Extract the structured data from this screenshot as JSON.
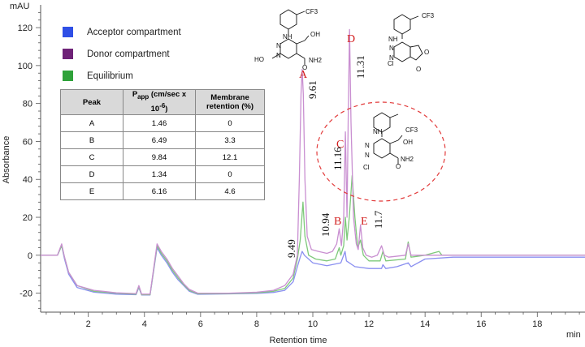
{
  "chart_data": {
    "type": "line",
    "title": "",
    "xlabel": "Retention time",
    "xunit": "min",
    "ylabel": "Absorbance",
    "yunit": "mAU",
    "xlim": [
      0.3,
      19.7
    ],
    "ylim": [
      -30,
      132
    ],
    "xticks": [
      2,
      4,
      6,
      8,
      10,
      12,
      14,
      16,
      18
    ],
    "yticks": [
      -20,
      0,
      20,
      40,
      60,
      80,
      100,
      120
    ],
    "legend": {
      "placement": "top-left"
    },
    "series": [
      {
        "name": "Acceptor compartment",
        "color": "#2f4fe6",
        "line_color": "#8a8ff0",
        "points": [
          [
            0.3,
            0
          ],
          [
            0.9,
            0
          ],
          [
            1.05,
            5
          ],
          [
            1.15,
            -2
          ],
          [
            1.3,
            -10
          ],
          [
            1.6,
            -17
          ],
          [
            2.2,
            -19.5
          ],
          [
            3.0,
            -20.5
          ],
          [
            3.7,
            -20.8
          ],
          [
            3.8,
            -17
          ],
          [
            3.9,
            -21
          ],
          [
            4.2,
            -21
          ],
          [
            4.45,
            4
          ],
          [
            4.6,
            0
          ],
          [
            4.8,
            -4
          ],
          [
            5.0,
            -9
          ],
          [
            5.2,
            -13
          ],
          [
            5.4,
            -16
          ],
          [
            5.6,
            -19
          ],
          [
            5.9,
            -20.6
          ],
          [
            7.0,
            -20.4
          ],
          [
            8.0,
            -20.1
          ],
          [
            8.6,
            -19.6
          ],
          [
            9.0,
            -18.5
          ],
          [
            9.3,
            -14
          ],
          [
            9.45,
            -6
          ],
          [
            9.55,
            -1
          ],
          [
            9.62,
            2
          ],
          [
            9.7,
            0
          ],
          [
            10.0,
            -4
          ],
          [
            10.5,
            -5.5
          ],
          [
            11.0,
            -4
          ],
          [
            11.15,
            2
          ],
          [
            11.2,
            -3
          ],
          [
            11.5,
            -6
          ],
          [
            12.0,
            -7
          ],
          [
            12.45,
            -7
          ],
          [
            12.5,
            -5
          ],
          [
            12.6,
            -7
          ],
          [
            13.0,
            -6
          ],
          [
            13.4,
            -4
          ],
          [
            13.5,
            -6
          ],
          [
            14.0,
            -2
          ],
          [
            15.0,
            -1
          ],
          [
            16.0,
            -1
          ],
          [
            17.0,
            -1
          ],
          [
            18.0,
            -1
          ],
          [
            19.7,
            -1
          ]
        ]
      },
      {
        "name": "Donor compartment",
        "color": "#6e2277",
        "line_color": "#c98fd1",
        "points": [
          [
            0.3,
            0
          ],
          [
            0.9,
            0
          ],
          [
            1.05,
            6
          ],
          [
            1.15,
            -1
          ],
          [
            1.3,
            -9
          ],
          [
            1.6,
            -16
          ],
          [
            2.2,
            -18.5
          ],
          [
            3.0,
            -19.8
          ],
          [
            3.7,
            -20.2
          ],
          [
            3.8,
            -16
          ],
          [
            3.9,
            -20.5
          ],
          [
            4.2,
            -20.5
          ],
          [
            4.45,
            6
          ],
          [
            4.6,
            2
          ],
          [
            4.8,
            -2
          ],
          [
            5.0,
            -7
          ],
          [
            5.2,
            -11
          ],
          [
            5.4,
            -15
          ],
          [
            5.6,
            -18
          ],
          [
            5.9,
            -20
          ],
          [
            7.0,
            -20
          ],
          [
            8.0,
            -19.5
          ],
          [
            8.6,
            -18.5
          ],
          [
            9.0,
            -16
          ],
          [
            9.3,
            -10
          ],
          [
            9.45,
            0
          ],
          [
            9.52,
            40
          ],
          [
            9.58,
            85
          ],
          [
            9.62,
            98
          ],
          [
            9.66,
            85
          ],
          [
            9.72,
            40
          ],
          [
            9.8,
            10
          ],
          [
            9.95,
            3
          ],
          [
            10.2,
            2
          ],
          [
            10.5,
            1
          ],
          [
            10.7,
            2
          ],
          [
            10.85,
            6
          ],
          [
            10.94,
            14
          ],
          [
            11.02,
            5
          ],
          [
            11.1,
            20
          ],
          [
            11.16,
            65
          ],
          [
            11.22,
            20
          ],
          [
            11.26,
            70
          ],
          [
            11.31,
            119
          ],
          [
            11.36,
            70
          ],
          [
            11.45,
            20
          ],
          [
            11.55,
            6
          ],
          [
            11.62,
            3
          ],
          [
            11.7,
            16
          ],
          [
            11.78,
            4
          ],
          [
            11.9,
            0
          ],
          [
            12.1,
            -1
          ],
          [
            12.3,
            0
          ],
          [
            12.45,
            5
          ],
          [
            12.55,
            0
          ],
          [
            12.7,
            -1
          ],
          [
            13.3,
            0
          ],
          [
            13.4,
            6
          ],
          [
            13.5,
            0
          ],
          [
            14.0,
            0
          ],
          [
            15.0,
            0
          ],
          [
            16.0,
            0
          ],
          [
            17.0,
            0
          ],
          [
            18.0,
            0
          ],
          [
            19.7,
            0
          ]
        ]
      },
      {
        "name": "Equilibrium",
        "color": "#2fa23a",
        "line_color": "#7ec97a",
        "points": [
          [
            0.3,
            0
          ],
          [
            0.9,
            0
          ],
          [
            1.05,
            5
          ],
          [
            1.15,
            -1
          ],
          [
            1.3,
            -9
          ],
          [
            1.6,
            -16
          ],
          [
            2.2,
            -19
          ],
          [
            3.0,
            -20
          ],
          [
            3.7,
            -20.5
          ],
          [
            3.8,
            -16.5
          ],
          [
            3.9,
            -20.8
          ],
          [
            4.2,
            -20.8
          ],
          [
            4.45,
            5
          ],
          [
            4.6,
            1
          ],
          [
            4.8,
            -3
          ],
          [
            5.0,
            -8
          ],
          [
            5.2,
            -12
          ],
          [
            5.4,
            -15.5
          ],
          [
            5.6,
            -18.5
          ],
          [
            5.9,
            -20.3
          ],
          [
            7.0,
            -20.2
          ],
          [
            8.0,
            -19.8
          ],
          [
            8.6,
            -19
          ],
          [
            9.0,
            -17.5
          ],
          [
            9.3,
            -12
          ],
          [
            9.45,
            -2
          ],
          [
            9.55,
            8
          ],
          [
            9.65,
            28
          ],
          [
            9.72,
            10
          ],
          [
            9.85,
            0
          ],
          [
            10.1,
            -2
          ],
          [
            10.5,
            -3
          ],
          [
            10.8,
            -2
          ],
          [
            10.94,
            4
          ],
          [
            11.0,
            0
          ],
          [
            11.1,
            5
          ],
          [
            11.16,
            20
          ],
          [
            11.22,
            8
          ],
          [
            11.3,
            20
          ],
          [
            11.4,
            42
          ],
          [
            11.5,
            20
          ],
          [
            11.6,
            4
          ],
          [
            11.7,
            8
          ],
          [
            11.8,
            0
          ],
          [
            12.0,
            -3
          ],
          [
            12.4,
            -3
          ],
          [
            12.5,
            2
          ],
          [
            12.6,
            -3
          ],
          [
            13.3,
            -2
          ],
          [
            13.4,
            7
          ],
          [
            13.5,
            -1
          ],
          [
            14.0,
            0
          ],
          [
            14.5,
            2
          ],
          [
            14.6,
            0
          ],
          [
            15.0,
            0
          ],
          [
            16.0,
            0
          ],
          [
            17.0,
            0
          ],
          [
            18.0,
            0
          ],
          [
            19.7,
            0
          ]
        ]
      }
    ],
    "peaks": [
      {
        "letter": "A",
        "rt": "9.61",
        "x": 9.61,
        "y": 98
      },
      {
        "letter": "B",
        "rt": "10.94",
        "x": 10.94,
        "y": 14
      },
      {
        "letter": "C",
        "rt": "11.16",
        "x": 11.16,
        "y": 65
      },
      {
        "letter": "D",
        "rt": "11.31",
        "x": 11.31,
        "y": 119
      },
      {
        "letter": "E",
        "rt": "11.7",
        "x": 11.7,
        "y": 16
      }
    ],
    "extra_rt_labels": [
      {
        "rt": "9.49",
        "x": 9.49
      }
    ]
  },
  "table": {
    "headers": {
      "peak": "Peak",
      "papp_main": "P",
      "papp_sub": "app",
      "papp_rest": " (cm/sec x 10",
      "papp_exp": "-6",
      "papp_close": ")",
      "retention": "Membrane retention (%)"
    },
    "rows": [
      {
        "peak": "A",
        "papp": "1.46",
        "retention": "0"
      },
      {
        "peak": "B",
        "papp": "6.49",
        "retention": "3.3"
      },
      {
        "peak": "C",
        "papp": "9.84",
        "retention": "12.1"
      },
      {
        "peak": "D",
        "papp": "1.34",
        "retention": "0"
      },
      {
        "peak": "E",
        "papp": "6.16",
        "retention": "4.6"
      }
    ]
  },
  "structures": {
    "A": {
      "cf3": "CF3",
      "nh": "NH",
      "n1": "N",
      "n2": "N",
      "oh_top": "OH",
      "ho": "HO",
      "conh2": "NH2",
      "o": "O"
    },
    "D": {
      "cf3": "CF3",
      "nh": "NH",
      "n1": "N",
      "n2": "N",
      "cl": "Cl",
      "o_ring": "O",
      "o": "O"
    },
    "C": {
      "cf3": "CF3",
      "nh": "NH",
      "n1": "N",
      "n2": "N",
      "oh_top": "OH",
      "cl": "Cl",
      "conh2": "NH2",
      "o": "O"
    }
  }
}
